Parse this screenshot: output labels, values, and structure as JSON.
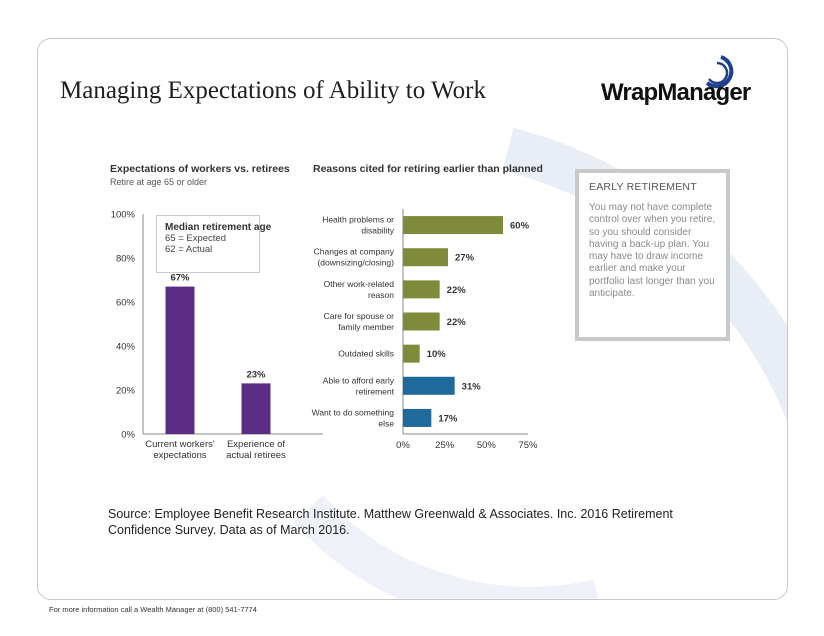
{
  "slide": {
    "title": "Managing Expectations of Ability to Work",
    "logo_text": "WrapManager",
    "source": "Source: Employee Benefit Research Institute. Matthew Greenwald & Associates. Inc. 2016 Retirement Confidence Survey. Data as of March 2016.",
    "footer": "For more information call a Wealth Manager at (800) 541-7774"
  },
  "info_box": {
    "title": "EARLY RETIREMENT",
    "body": "You may not have complete control over when you retire, so you should consider having a back-up plan. You may have to draw income earlier and make your portfolio last longer than you anticipate."
  },
  "colors": {
    "purple": "#5b2c83",
    "olive": "#7f8a3a",
    "blue": "#1f6a9a",
    "logo_blue": "#1e3f8a",
    "arc": "#e9eef6"
  },
  "chart_data": [
    {
      "type": "bar",
      "title": "Expectations of workers vs. retirees",
      "subtitle": "Retire at age 65 or older",
      "categories": [
        [
          "Current workers'",
          "expectations"
        ],
        [
          "Experience of",
          "actual retirees"
        ]
      ],
      "values": [
        67,
        23
      ],
      "labels": [
        "67%",
        "23%"
      ],
      "ylim": [
        0,
        100
      ],
      "yticks": [
        "0%",
        "20%",
        "40%",
        "60%",
        "80%",
        "100%"
      ],
      "grid": false,
      "legend": {
        "title": "Median retirement age",
        "items": [
          "65 = Expected",
          "62 = Actual"
        ]
      }
    },
    {
      "type": "bar",
      "orientation": "horizontal",
      "title": "Reasons cited for retiring earlier than planned",
      "categories": [
        [
          "Health problems or",
          "disability"
        ],
        [
          "Changes at company",
          "(downsizing/closing)"
        ],
        [
          "Other work-related",
          "reason"
        ],
        [
          "Care for spouse or",
          "family member"
        ],
        [
          "Outdated skills"
        ],
        [
          "Able to afford early",
          "retirement"
        ],
        [
          "Want to do something",
          "else"
        ]
      ],
      "values": [
        60,
        27,
        22,
        22,
        10,
        31,
        17
      ],
      "labels": [
        "60%",
        "27%",
        "22%",
        "22%",
        "10%",
        "31%",
        "17%"
      ],
      "bar_colors": [
        "olive",
        "olive",
        "olive",
        "olive",
        "olive",
        "blue",
        "blue"
      ],
      "xlim": [
        0,
        75
      ],
      "xticks": [
        "0%",
        "25%",
        "50%",
        "75%"
      ],
      "grid": false
    }
  ]
}
